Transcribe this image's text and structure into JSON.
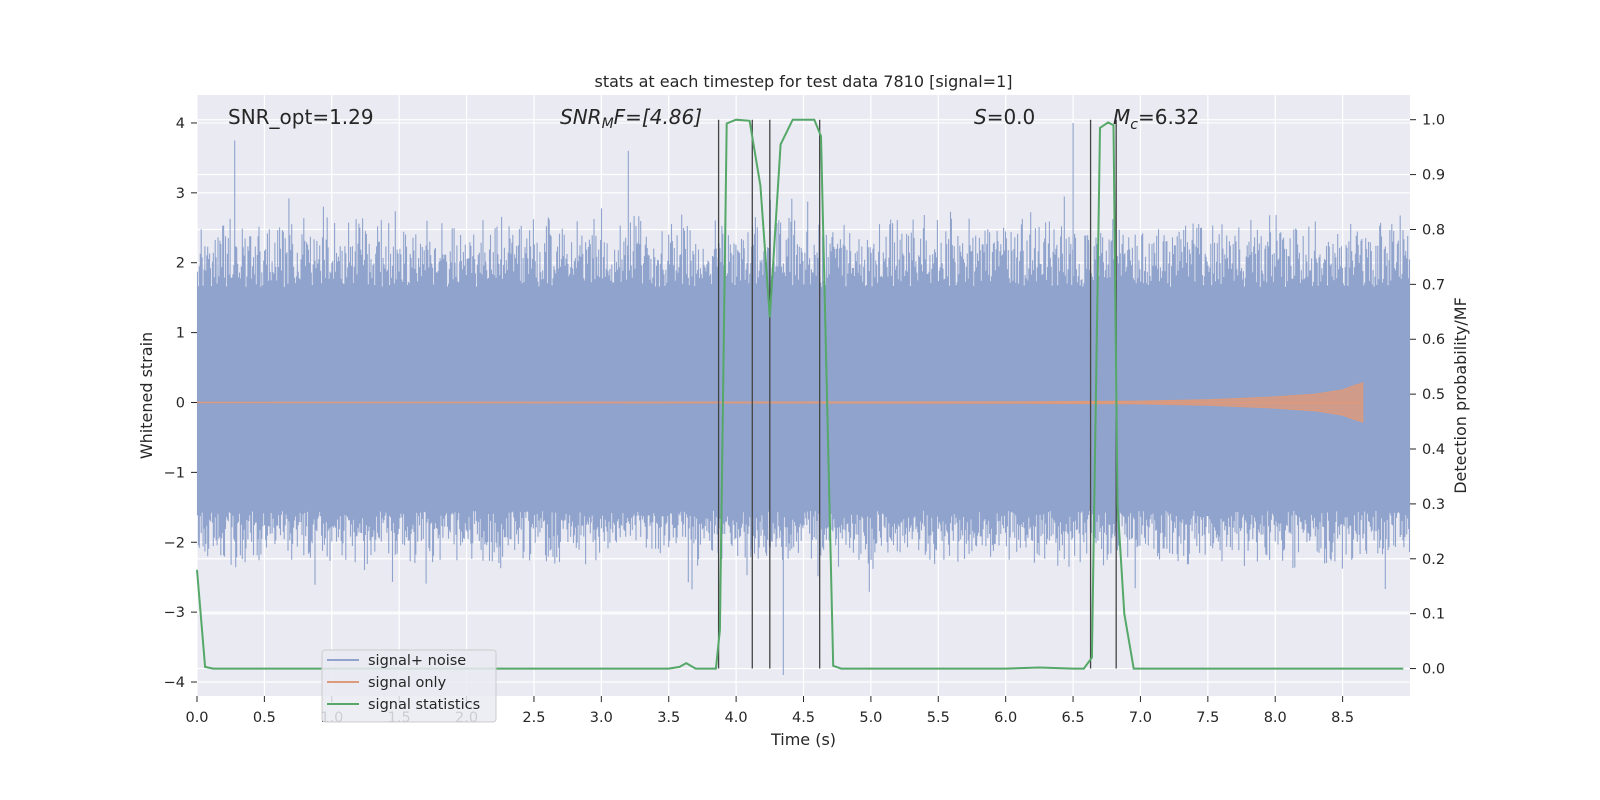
{
  "chart_data": {
    "type": "line",
    "title": "stats at each timestep for test data 7810 [signal=1]",
    "xlabel": "Time (s)",
    "ylabel": "Whitened strain",
    "y2label": "Detection probability/MF",
    "xlim": [
      0.0,
      9.0
    ],
    "ylim": [
      -4.2,
      4.4
    ],
    "y2lim": [
      -0.05,
      1.045
    ],
    "xticks": [
      "0.0",
      "0.5",
      "1.0",
      "1.5",
      "2.0",
      "2.5",
      "3.0",
      "3.5",
      "4.0",
      "4.5",
      "5.0",
      "5.5",
      "6.0",
      "6.5",
      "7.0",
      "7.5",
      "8.0",
      "8.5"
    ],
    "yticks": [
      "4",
      "3",
      "2",
      "1",
      "0",
      "−1",
      "−2",
      "−3",
      "−4"
    ],
    "y2ticks": [
      "1.0",
      "0.9",
      "0.8",
      "0.7",
      "0.6",
      "0.5",
      "0.4",
      "0.3",
      "0.2",
      "0.1",
      "0.0"
    ],
    "grid": true,
    "legend_position": "lower-left",
    "annotations": {
      "snr_opt": "SNR_opt=1.29",
      "snr_mf_base": "SNR",
      "snr_mf_sub": "M",
      "snr_mf_rest": "F=[4.86]",
      "s_base": "S",
      "s_rest": "=0.0",
      "mc_base": "M",
      "mc_sub": "c",
      "mc_rest": "=6.32"
    },
    "series": [
      {
        "name": "signal+ noise",
        "color": "#8fa3cc",
        "description_range": [
          -3.9,
          4.0
        ],
        "envelope": {
          "core": [
            -1.55,
            1.65
          ],
          "typical_peak": [
            -2.4,
            2.8
          ]
        },
        "notable_peaks": [
          [
            0.28,
            3.75
          ],
          [
            3.2,
            3.6
          ],
          [
            6.5,
            4.0
          ],
          [
            4.35,
            -3.9
          ]
        ]
      },
      {
        "name": "signal only",
        "color": "#dd9a7c",
        "x": [
          0.0,
          6.0,
          7.0,
          7.5,
          8.0,
          8.3,
          8.5,
          8.6,
          8.65
        ],
        "amplitude": [
          0.0,
          0.01,
          0.02,
          0.04,
          0.08,
          0.12,
          0.18,
          0.25,
          0.28
        ]
      },
      {
        "name": "signal statistics",
        "color": "#55a868",
        "axis": "right",
        "x": [
          0.0,
          0.06,
          0.12,
          0.5,
          1.0,
          2.0,
          3.0,
          3.5,
          3.58,
          3.63,
          3.7,
          3.85,
          3.88,
          3.93,
          4.0,
          4.1,
          4.18,
          4.25,
          4.33,
          4.42,
          4.58,
          4.63,
          4.72,
          4.78,
          5.0,
          6.0,
          6.25,
          6.5,
          6.58,
          6.64,
          6.7,
          6.76,
          6.8,
          6.83,
          6.88,
          6.95,
          7.0,
          8.0,
          8.95
        ],
        "y": [
          0.18,
          0.003,
          0.0,
          0.0,
          0.0,
          0.0,
          0.0,
          0.0,
          0.003,
          0.01,
          0.0,
          0.0,
          0.07,
          0.993,
          1.0,
          0.998,
          0.88,
          0.64,
          0.955,
          1.0,
          1.0,
          0.97,
          0.005,
          0.0,
          0.0,
          0.0,
          0.002,
          0.0,
          0.0,
          0.02,
          0.985,
          0.995,
          0.99,
          0.3,
          0.1,
          0.0,
          0.0,
          0.0,
          0.0
        ]
      }
    ],
    "vertical_markers": [
      3.87,
      4.12,
      4.25,
      4.62,
      6.63,
      6.82
    ]
  }
}
